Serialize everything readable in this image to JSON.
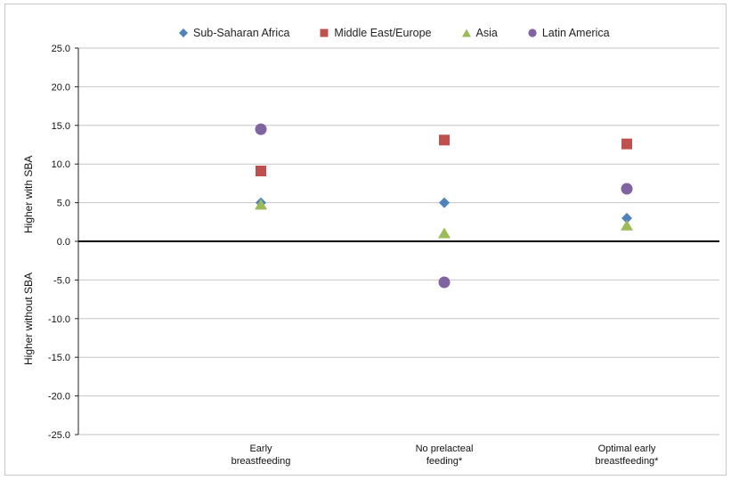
{
  "chart_data": {
    "type": "scatter",
    "categories": [
      "Early breastfeeding",
      "No prelacteal feeding*",
      "Optimal early breastfeeding*"
    ],
    "category_lines": [
      [
        "Early",
        "breastfeeding"
      ],
      [
        "No prelacteal",
        "feeding*"
      ],
      [
        "Optimal early",
        "breastfeeding*"
      ]
    ],
    "series": [
      {
        "name": "Sub-Saharan Africa",
        "marker": "diamond",
        "color": "#4f81bd",
        "values": [
          5.0,
          5.0,
          3.0
        ]
      },
      {
        "name": "Middle East/Europe",
        "marker": "square",
        "color": "#c0504d",
        "values": [
          9.1,
          13.1,
          12.6
        ]
      },
      {
        "name": "Asia",
        "marker": "triangle",
        "color": "#9bbb59",
        "values": [
          4.8,
          1.1,
          2.1
        ]
      },
      {
        "name": "Latin America",
        "marker": "circle",
        "color": "#8064a2",
        "values": [
          14.5,
          -5.3,
          6.8
        ]
      }
    ],
    "yticks": [
      "25.0",
      "20.0",
      "15.0",
      "10.0",
      "5.0",
      "0.0",
      "-5.0",
      "-10.0",
      "-15.0",
      "-20.0",
      "-25.0"
    ],
    "ylim": [
      -25,
      25
    ],
    "grid": true,
    "legend": "top",
    "ylabel_upper": "Higher with SBA",
    "ylabel_lower": "Higher without SBA"
  }
}
